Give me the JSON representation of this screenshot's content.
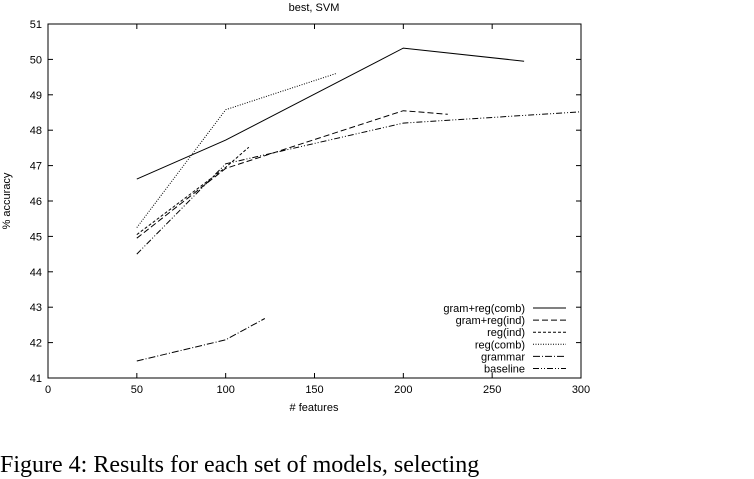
{
  "chart_data": {
    "type": "line",
    "title": "best, SVM",
    "xlabel": "# features",
    "ylabel": "% accuracy",
    "xlim": [
      0,
      300
    ],
    "ylim": [
      41,
      51
    ],
    "xticks": [
      0,
      50,
      100,
      150,
      200,
      250,
      300
    ],
    "yticks": [
      41,
      42,
      43,
      44,
      45,
      46,
      47,
      48,
      49,
      50,
      51
    ],
    "grid": false,
    "legend_position": "bottom-right",
    "series": [
      {
        "name": "gram+reg(comb)",
        "dash": "solid",
        "x": [
          50,
          100,
          200,
          268
        ],
        "y": [
          46.62,
          47.72,
          50.32,
          49.95
        ]
      },
      {
        "name": "gram+reg(ind)",
        "dash": "dashed",
        "x": [
          50,
          100,
          200,
          225
        ],
        "y": [
          44.95,
          46.92,
          48.55,
          48.45
        ]
      },
      {
        "name": "reg(ind)",
        "dash": "short-dashed",
        "x": [
          50,
          100,
          113
        ],
        "y": [
          45.05,
          46.95,
          47.52
        ]
      },
      {
        "name": "reg(comb)",
        "dash": "dotted",
        "x": [
          50,
          100,
          162
        ],
        "y": [
          45.25,
          48.58,
          49.6
        ]
      },
      {
        "name": "grammar",
        "dash": "dash-dot",
        "x": [
          50,
          100,
          122
        ],
        "y": [
          41.48,
          42.08,
          42.68
        ]
      },
      {
        "name": "baseline",
        "dash": "dash-dot-dot",
        "x": [
          50,
          100,
          200,
          300
        ],
        "y": [
          44.5,
          47.05,
          48.2,
          48.52
        ]
      }
    ]
  },
  "caption": "Figure 4: Results for each set of models, selecting"
}
